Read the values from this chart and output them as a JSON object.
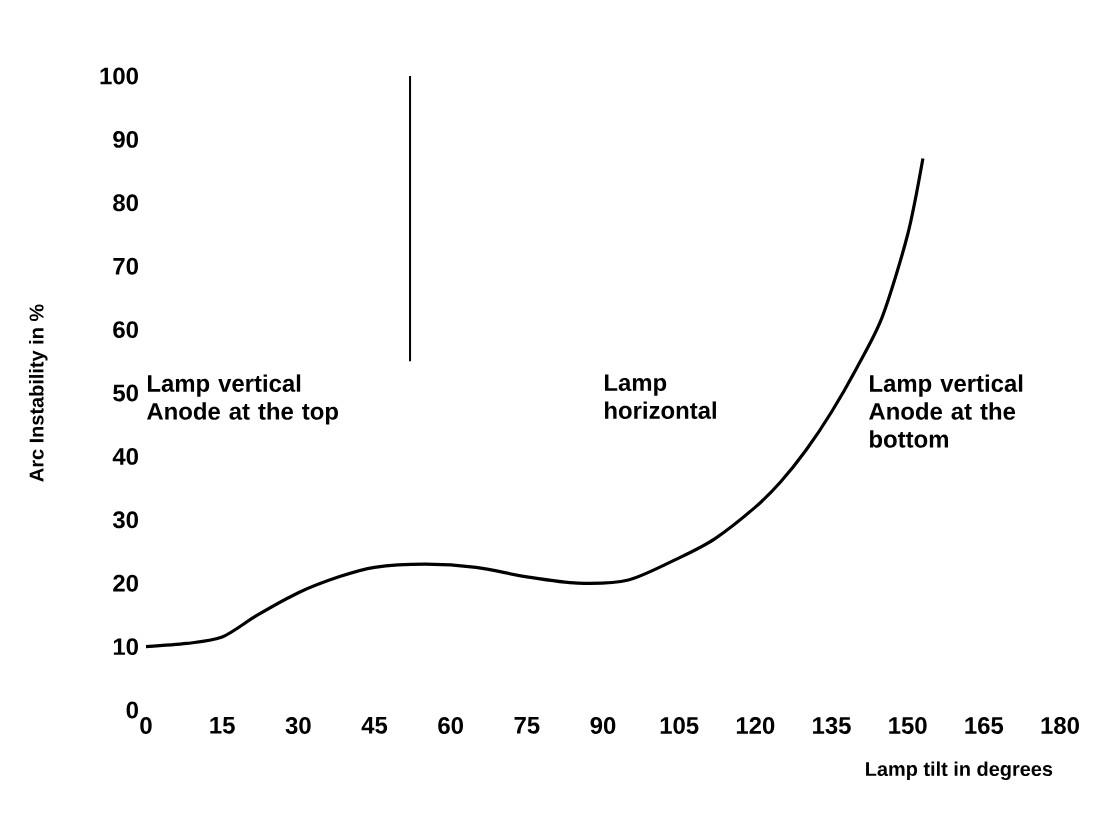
{
  "chart_data": {
    "type": "line",
    "xlabel": "Lamp tilt in degrees",
    "ylabel": "Arc Instability in %",
    "x": [
      0,
      8,
      15,
      22,
      30,
      38,
      45,
      55,
      65,
      75,
      85,
      95,
      105,
      112,
      120,
      125,
      130,
      135,
      140,
      145,
      150,
      153
    ],
    "series": [
      {
        "color": "#000000",
        "values": [
          10,
          10.5,
          11.5,
          15,
          18.5,
          21,
          22.5,
          23,
          22.5,
          21,
          20,
          20.5,
          24,
          27,
          32,
          36,
          41,
          47,
          54,
          62,
          75,
          87
        ]
      }
    ],
    "xlim": [
      0,
      180
    ],
    "xticks": [
      0,
      15,
      30,
      45,
      60,
      75,
      90,
      105,
      120,
      135,
      150,
      165,
      180
    ],
    "ylim": [
      0,
      100
    ],
    "yticks": [
      0,
      10,
      20,
      30,
      40,
      50,
      60,
      70,
      80,
      90,
      100
    ],
    "ref_lines": [
      {
        "axis": "x",
        "value": 52
      }
    ],
    "annotations": [
      "Lamp vertical Anode at the top",
      "Lamp horizontal",
      "Lamp vertical Anode at the bottom"
    ],
    "line_style": "solid",
    "marker": "none"
  }
}
